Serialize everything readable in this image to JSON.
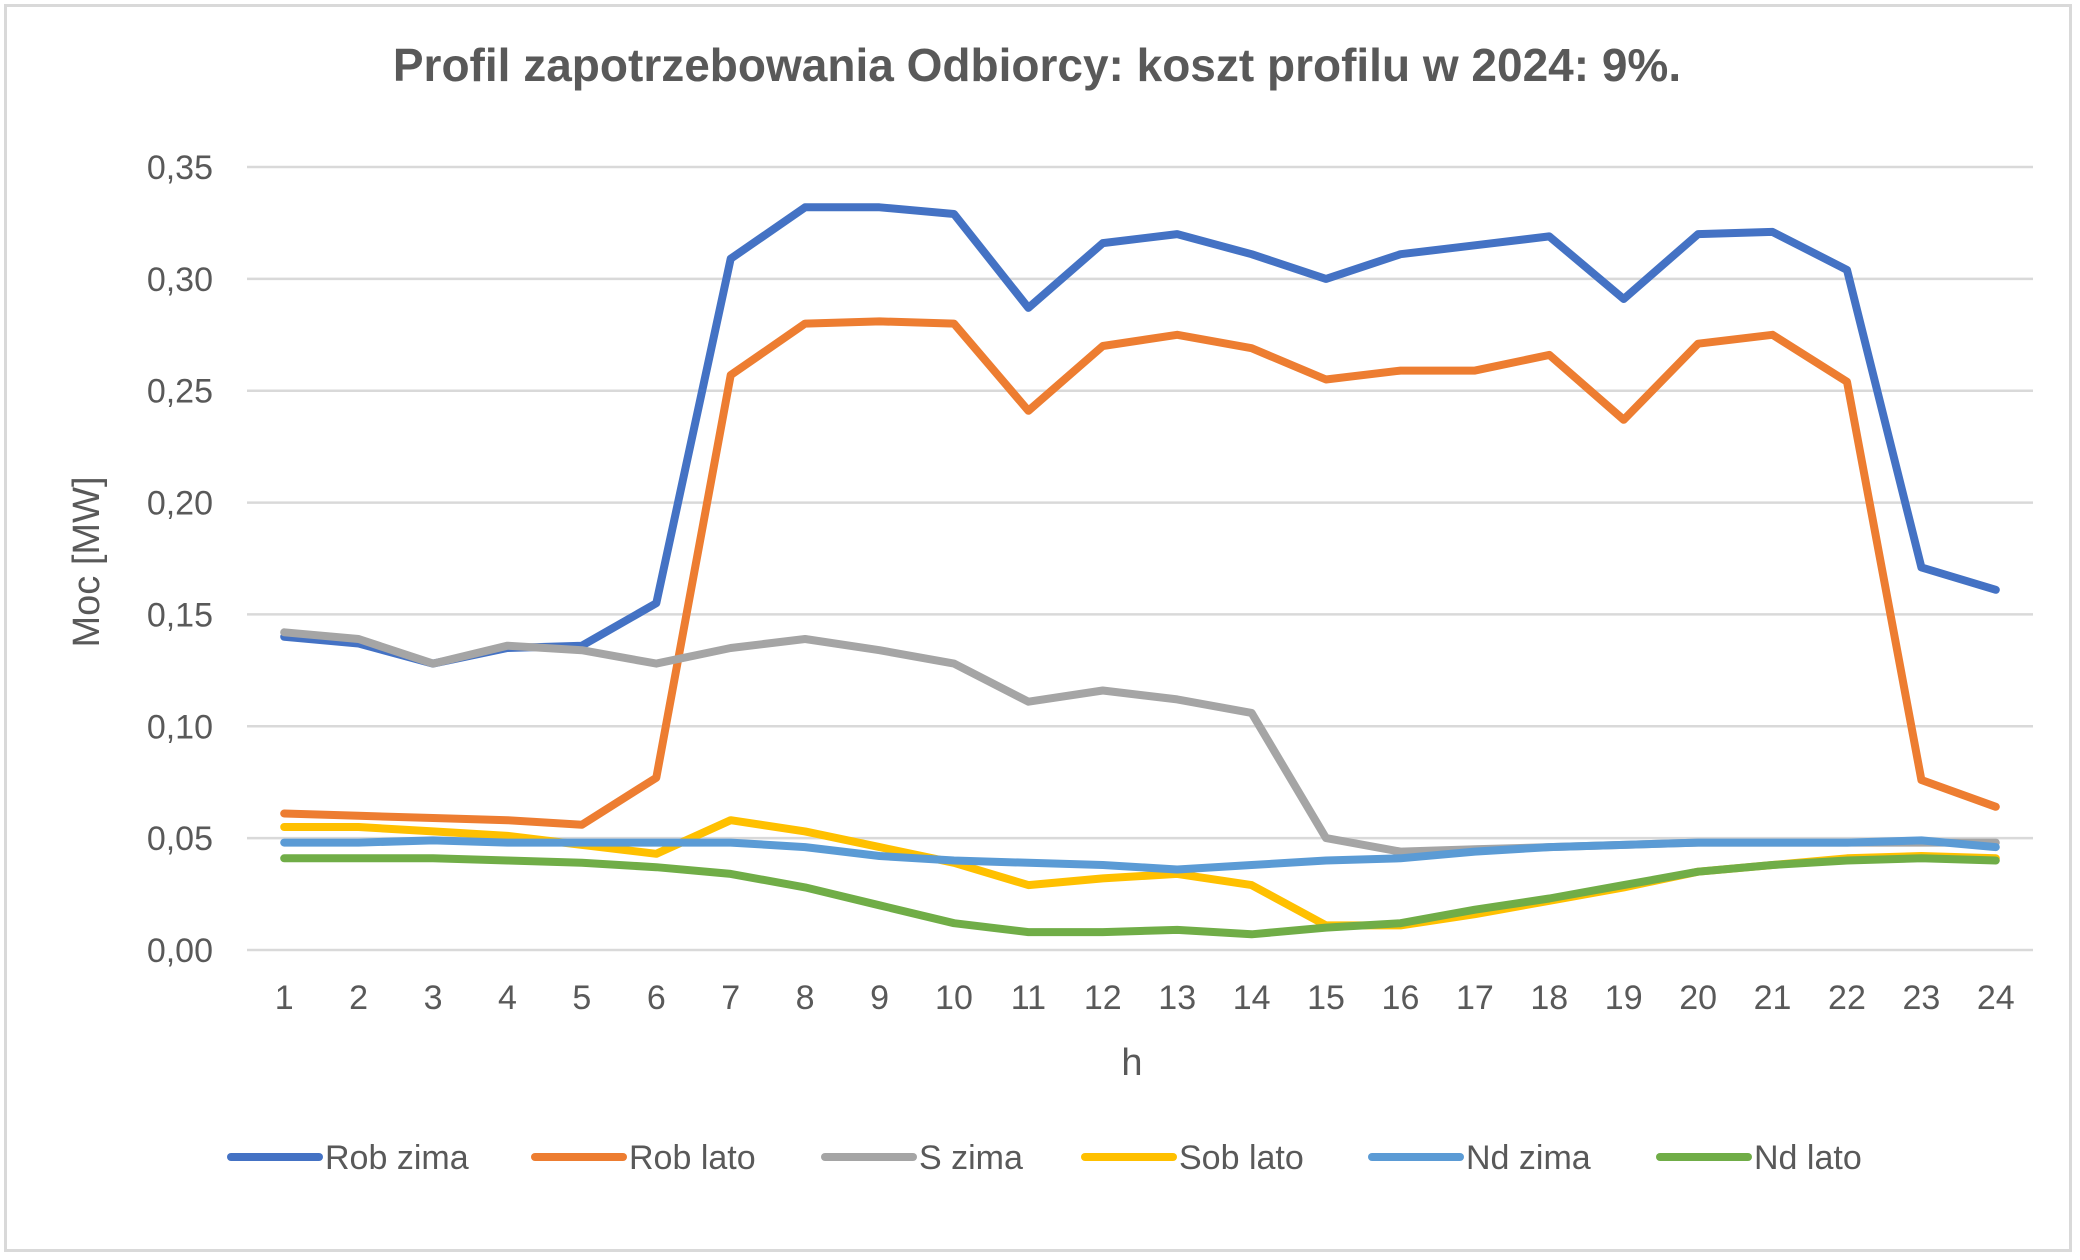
{
  "chart_data": {
    "type": "line",
    "title": "Profil zapotrzebowania Odbiorcy: koszt profilu w 2024: 9%.",
    "xlabel": "h",
    "ylabel": "Moc [MW]",
    "ylim": [
      0,
      0.35
    ],
    "yticks": [
      {
        "value": 0.0,
        "label": "0,00"
      },
      {
        "value": 0.05,
        "label": "0,05"
      },
      {
        "value": 0.1,
        "label": "0,10"
      },
      {
        "value": 0.15,
        "label": "0,15"
      },
      {
        "value": 0.2,
        "label": "0,20"
      },
      {
        "value": 0.25,
        "label": "0,25"
      },
      {
        "value": 0.3,
        "label": "0,30"
      },
      {
        "value": 0.35,
        "label": "0,35"
      }
    ],
    "categories": [
      "1",
      "2",
      "3",
      "4",
      "5",
      "6",
      "7",
      "8",
      "9",
      "10",
      "11",
      "12",
      "13",
      "14",
      "15",
      "16",
      "17",
      "18",
      "19",
      "20",
      "21",
      "22",
      "23",
      "24"
    ],
    "grid": true,
    "legend_position": "bottom",
    "series": [
      {
        "name": "Rob zima",
        "color": "#4472C4",
        "values": [
          0.14,
          0.137,
          0.128,
          0.135,
          0.136,
          0.155,
          0.309,
          0.332,
          0.332,
          0.329,
          0.287,
          0.316,
          0.32,
          0.311,
          0.3,
          0.311,
          0.315,
          0.319,
          0.291,
          0.32,
          0.321,
          0.304,
          0.171,
          0.161
        ]
      },
      {
        "name": "Rob lato",
        "color": "#ED7D31",
        "values": [
          0.061,
          0.06,
          0.059,
          0.058,
          0.056,
          0.077,
          0.257,
          0.28,
          0.281,
          0.28,
          0.241,
          0.27,
          0.275,
          0.269,
          0.255,
          0.259,
          0.259,
          0.266,
          0.237,
          0.271,
          0.275,
          0.254,
          0.076,
          0.064
        ]
      },
      {
        "name": "S zima",
        "color": "#A5A5A5",
        "values": [
          0.142,
          0.139,
          0.128,
          0.136,
          0.134,
          0.128,
          0.135,
          0.139,
          0.134,
          0.128,
          0.111,
          0.116,
          0.112,
          0.106,
          0.05,
          0.044,
          0.045,
          0.046,
          0.047,
          0.048,
          0.048,
          0.048,
          0.048,
          0.048
        ]
      },
      {
        "name": "Sob lato",
        "color": "#FFC000",
        "values": [
          0.055,
          0.055,
          0.053,
          0.051,
          0.047,
          0.043,
          0.058,
          0.053,
          0.046,
          0.039,
          0.029,
          0.032,
          0.034,
          0.029,
          0.011,
          0.011,
          0.016,
          0.022,
          0.028,
          0.035,
          0.038,
          0.041,
          0.042,
          0.041
        ]
      },
      {
        "name": "Nd zima",
        "color": "#5B9BD5",
        "values": [
          0.048,
          0.048,
          0.049,
          0.048,
          0.048,
          0.048,
          0.048,
          0.046,
          0.042,
          0.04,
          0.039,
          0.038,
          0.036,
          0.038,
          0.04,
          0.041,
          0.044,
          0.046,
          0.047,
          0.048,
          0.048,
          0.048,
          0.049,
          0.046
        ]
      },
      {
        "name": "Nd lato",
        "color": "#70AD47",
        "values": [
          0.041,
          0.041,
          0.041,
          0.04,
          0.039,
          0.037,
          0.034,
          0.028,
          0.02,
          0.012,
          0.008,
          0.008,
          0.009,
          0.007,
          0.01,
          0.012,
          0.018,
          0.023,
          0.029,
          0.035,
          0.038,
          0.04,
          0.041,
          0.04
        ]
      }
    ]
  }
}
